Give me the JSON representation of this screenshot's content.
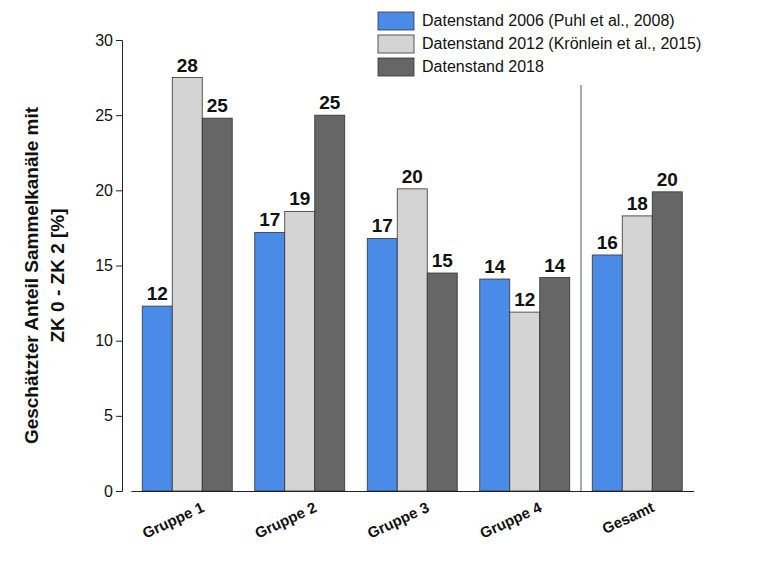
{
  "chart_data": {
    "type": "bar",
    "y_label": [
      "Geschätzter Anteil Sammelkanäle mit",
      "ZK 0 - ZK 2 [%]"
    ],
    "categories": [
      "Gruppe 1",
      "Gruppe 2",
      "Gruppe 3",
      "Gruppe 4",
      "Gesamt"
    ],
    "series": [
      {
        "name": "Datenstand 2006 (Puhl et al., 2008)",
        "color": "#4a8be8",
        "values": [
          12.3,
          17.2,
          16.8,
          14.1,
          15.7
        ],
        "value_labels": [
          "12",
          "17",
          "17",
          "14",
          "16"
        ]
      },
      {
        "name": "Datenstand 2012 (Krönlein et al., 2015)",
        "color": "#d4d4d4",
        "values": [
          27.5,
          18.6,
          20.1,
          11.9,
          18.3
        ],
        "value_labels": [
          "28",
          "19",
          "20",
          "12",
          "18"
        ]
      },
      {
        "name": "Datenstand 2018",
        "color": "#666666",
        "values": [
          24.8,
          25.0,
          14.5,
          14.2,
          19.9
        ],
        "value_labels": [
          "25",
          "25",
          "15",
          "14",
          "20"
        ]
      }
    ],
    "ylim": [
      0,
      30
    ],
    "yticks": [
      0,
      5,
      10,
      15,
      20,
      25,
      30
    ],
    "grid": false,
    "legend": "top-right",
    "data_labels": true
  }
}
